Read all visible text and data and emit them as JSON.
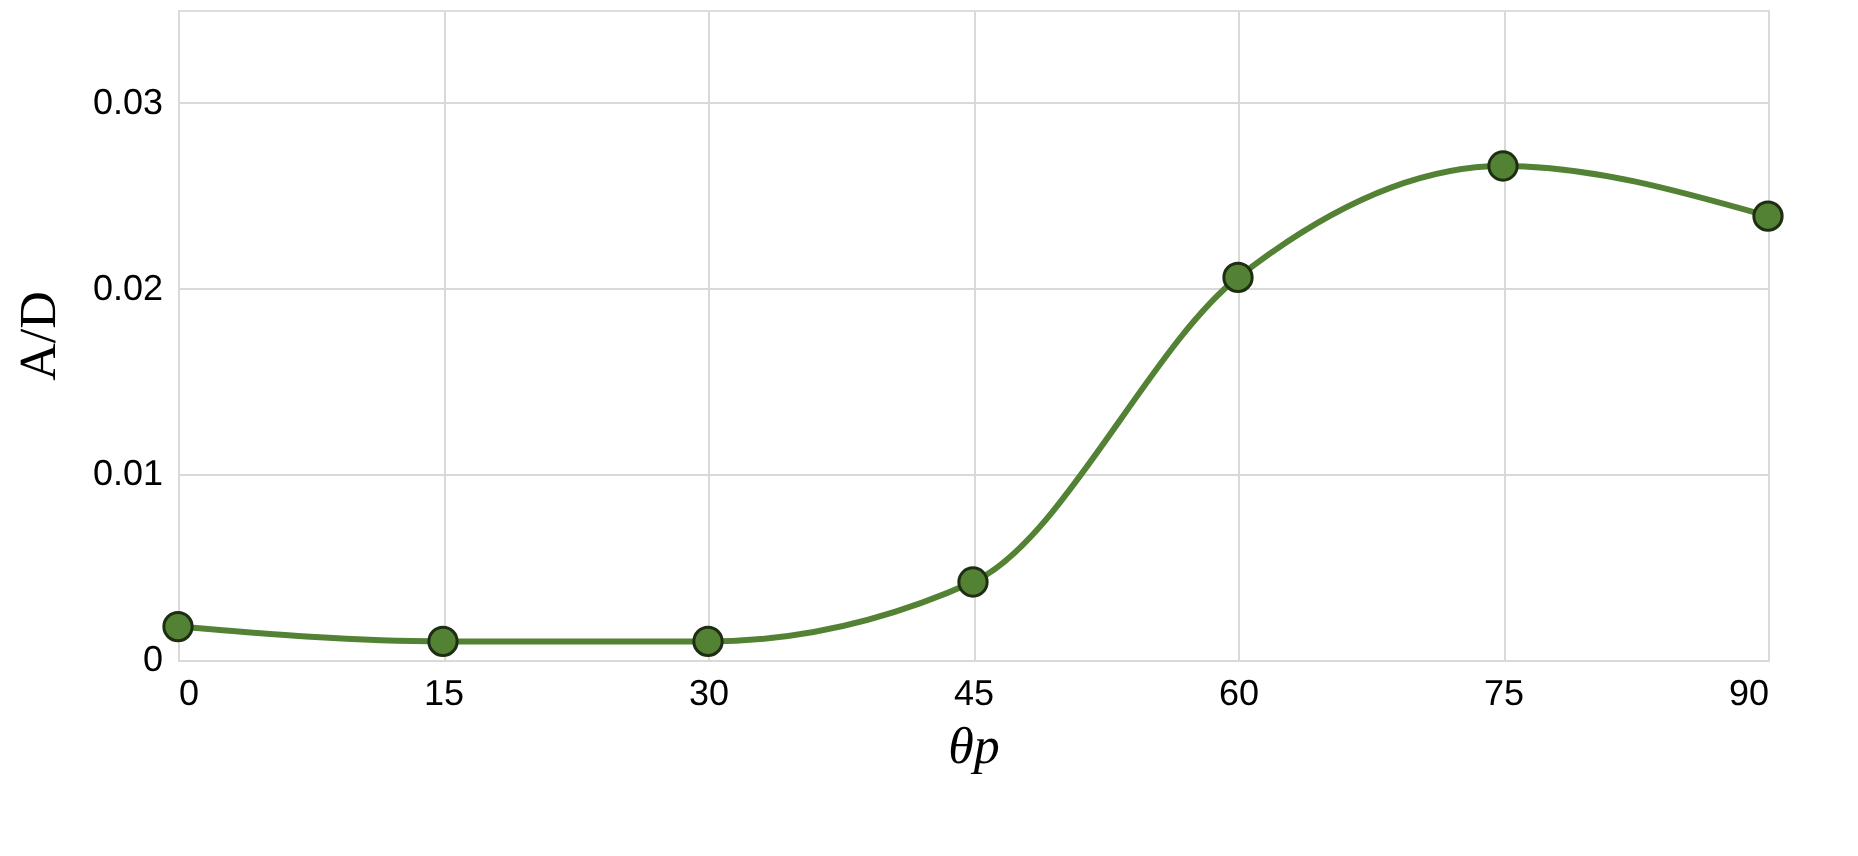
{
  "chart_data": {
    "type": "line",
    "xlabel": "θp",
    "ylabel": "A/D",
    "x": [
      0,
      15,
      30,
      45,
      60,
      75,
      90
    ],
    "series": [
      {
        "color": "#548235",
        "values": [
          0.0018,
          0.001,
          0.001,
          0.0042,
          0.0206,
          0.0266,
          0.0239
        ]
      }
    ],
    "xlim": [
      0,
      90
    ],
    "xticks": [
      0,
      15,
      30,
      45,
      60,
      75,
      90
    ],
    "ylim": [
      0,
      0.035
    ],
    "yticks": [
      0,
      0.01,
      0.02,
      0.03
    ],
    "grid": true,
    "marker": "circle",
    "line_style": "solid"
  }
}
